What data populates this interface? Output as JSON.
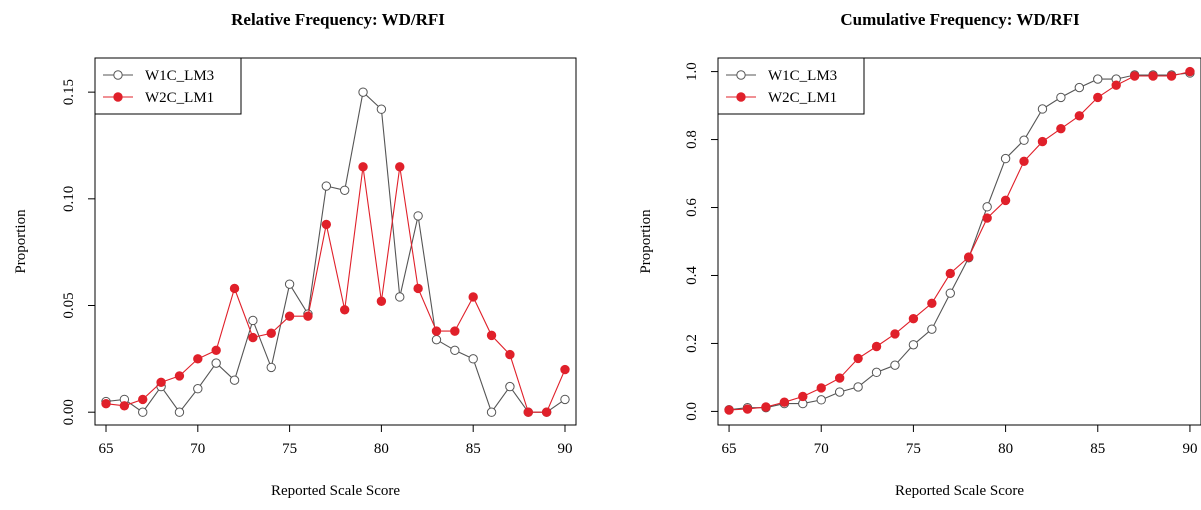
{
  "chart_data": [
    {
      "type": "line",
      "title": "Relative Frequency: WD/RFI",
      "xlabel": "Reported Scale Score",
      "ylabel": "Proportion",
      "xlim": [
        64.4,
        90.6
      ],
      "ylim": [
        -0.006,
        0.166
      ],
      "xticks": [
        65,
        70,
        75,
        80,
        85,
        90
      ],
      "yticks": [
        0.0,
        0.05,
        0.1,
        0.15
      ],
      "ytick_labels": [
        "0.00",
        "0.05",
        "0.10",
        "0.15"
      ],
      "legend_position": "top-left",
      "x": [
        65,
        66,
        67,
        68,
        69,
        70,
        71,
        72,
        73,
        74,
        75,
        76,
        77,
        78,
        79,
        80,
        81,
        82,
        83,
        84,
        85,
        86,
        87,
        88,
        89,
        90
      ],
      "series": [
        {
          "name": "W1C_LM3",
          "marker": "open-circle",
          "color": "#555555",
          "values": [
            0.005,
            0.006,
            0.0,
            0.012,
            0.0,
            0.011,
            0.023,
            0.015,
            0.043,
            0.021,
            0.06,
            0.046,
            0.106,
            0.104,
            0.15,
            0.142,
            0.054,
            0.092,
            0.034,
            0.029,
            0.025,
            0.0,
            0.012,
            0.0,
            0.0,
            0.006
          ]
        },
        {
          "name": "W2C_LM1",
          "marker": "filled-circle",
          "color": "#e0202a",
          "values": [
            0.004,
            0.003,
            0.006,
            0.014,
            0.017,
            0.025,
            0.029,
            0.058,
            0.035,
            0.037,
            0.045,
            0.045,
            0.088,
            0.048,
            0.115,
            0.052,
            0.115,
            0.058,
            0.038,
            0.038,
            0.054,
            0.036,
            0.027,
            0.0,
            0.0,
            0.02
          ]
        }
      ]
    },
    {
      "type": "line",
      "title": "Cumulative Frequency: WD/RFI",
      "xlabel": "Reported Scale Score",
      "ylabel": "Proportion",
      "xlim": [
        64.4,
        90.6
      ],
      "ylim": [
        -0.04,
        1.04
      ],
      "xticks": [
        65,
        70,
        75,
        80,
        85,
        90
      ],
      "yticks": [
        0.0,
        0.2,
        0.4,
        0.6,
        0.8,
        1.0
      ],
      "ytick_labels": [
        "0.0",
        "0.2",
        "0.4",
        "0.6",
        "0.8",
        "1.0"
      ],
      "legend_position": "top-left",
      "x": [
        65,
        66,
        67,
        68,
        69,
        70,
        71,
        72,
        73,
        74,
        75,
        76,
        77,
        78,
        79,
        80,
        81,
        82,
        83,
        84,
        85,
        86,
        87,
        88,
        89,
        90
      ],
      "series": [
        {
          "name": "W1C_LM3",
          "marker": "open-circle",
          "color": "#555555",
          "values": [
            0.005,
            0.011,
            0.011,
            0.023,
            0.023,
            0.034,
            0.057,
            0.072,
            0.115,
            0.136,
            0.196,
            0.242,
            0.348,
            0.452,
            0.602,
            0.744,
            0.798,
            0.89,
            0.924,
            0.953,
            0.978,
            0.978,
            0.99,
            0.99,
            0.99,
            0.996
          ]
        },
        {
          "name": "W2C_LM1",
          "marker": "filled-circle",
          "color": "#e0202a",
          "values": [
            0.004,
            0.007,
            0.013,
            0.027,
            0.044,
            0.069,
            0.098,
            0.156,
            0.191,
            0.228,
            0.273,
            0.318,
            0.406,
            0.454,
            0.569,
            0.621,
            0.736,
            0.794,
            0.832,
            0.87,
            0.924,
            0.96,
            0.987,
            0.987,
            0.987,
            1.0
          ]
        }
      ]
    }
  ]
}
